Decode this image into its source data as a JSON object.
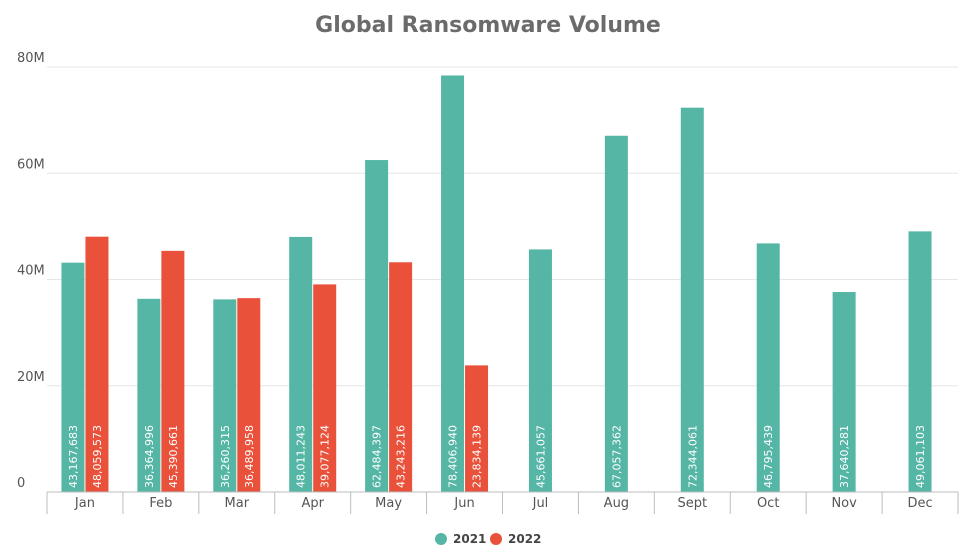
{
  "chart_data": {
    "type": "bar",
    "title": "Global Ransomware Volume",
    "categories": [
      "Jan",
      "Feb",
      "Mar",
      "Apr",
      "May",
      "Jun",
      "Jul",
      "Aug",
      "Sept",
      "Oct",
      "Nov",
      "Dec"
    ],
    "series": [
      {
        "name": "2021",
        "color": "#55b6a6",
        "values": [
          43167683,
          36364996,
          36260315,
          48011243,
          62484397,
          78406940,
          45661057,
          67057362,
          72344061,
          46795439,
          37640281,
          49061103
        ],
        "labels": [
          "43,167,683",
          "36,364,996",
          "36,260,315",
          "48,011,243",
          "62,484,397",
          "78,406,940",
          "45,661,057",
          "67,057,362",
          "72,344,061",
          "46,795,439",
          "37,640,281",
          "49,061,103"
        ]
      },
      {
        "name": "2022",
        "color": "#e9513a",
        "values": [
          48059573,
          45390661,
          36489958,
          39077124,
          43243216,
          23834139,
          null,
          null,
          null,
          null,
          null,
          null
        ],
        "labels": [
          "48,059,573",
          "45,390,661",
          "36,489,958",
          "39,077,124",
          "43,243,216",
          "23,834,139",
          null,
          null,
          null,
          null,
          null,
          null
        ]
      }
    ],
    "yticks": [
      0,
      20000000,
      40000000,
      60000000,
      80000000
    ],
    "ytick_labels": [
      "0",
      "20M",
      "40M",
      "60M",
      "80M"
    ],
    "ylim": [
      0,
      80000000
    ],
    "grid": true,
    "legend_position": "bottom-center"
  }
}
